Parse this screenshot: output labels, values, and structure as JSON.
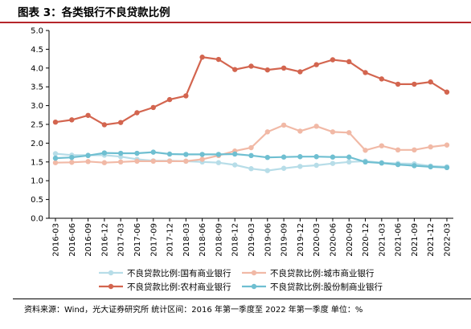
{
  "figure_title": "图表 3：各类银行不良贷款比例",
  "source_note": "资料来源：Wind，光大证券研究所    统计区间：2016 年第一季度至 2022 年第一季度    单位：%",
  "chart_data": {
    "type": "line",
    "title": "",
    "xlabel": "",
    "ylabel": "",
    "ylim": [
      0,
      5
    ],
    "yticks": [
      "0.0",
      "0.5",
      "1.0",
      "1.5",
      "2.0",
      "2.5",
      "3.0",
      "3.5",
      "4.0",
      "4.5",
      "5.0"
    ],
    "grid": false,
    "legend_position": "bottom",
    "categories": [
      "2016-03",
      "2016-06",
      "2016-09",
      "2016-12",
      "2017-03",
      "2017-06",
      "2017-09",
      "2017-12",
      "2018-03",
      "2018-06",
      "2018-09",
      "2018-12",
      "2019-03",
      "2019-06",
      "2019-09",
      "2019-12",
      "2020-03",
      "2020-06",
      "2020-09",
      "2020-12",
      "2021-03",
      "2021-06",
      "2021-09",
      "2021-12",
      "2022-03"
    ],
    "series": [
      {
        "name": "不良贷款比例:国有商业银行",
        "color": "#b7dde8",
        "values": [
          1.72,
          1.68,
          1.68,
          1.68,
          1.64,
          1.57,
          1.53,
          1.53,
          1.52,
          1.5,
          1.48,
          1.42,
          1.32,
          1.27,
          1.33,
          1.38,
          1.41,
          1.46,
          1.5,
          1.52,
          1.48,
          1.46,
          1.45,
          1.39,
          1.37
        ]
      },
      {
        "name": "不良贷款比例:城市商业银行",
        "color": "#f1b9a6",
        "values": [
          1.48,
          1.49,
          1.51,
          1.48,
          1.5,
          1.52,
          1.52,
          1.52,
          1.52,
          1.57,
          1.67,
          1.79,
          1.88,
          2.3,
          2.48,
          2.32,
          2.45,
          2.3,
          2.28,
          1.81,
          1.93,
          1.82,
          1.82,
          1.9,
          1.95
        ]
      },
      {
        "name": "不良贷款比例:农村商业银行",
        "color": "#d3654f",
        "values": [
          2.56,
          2.62,
          2.74,
          2.49,
          2.55,
          2.81,
          2.95,
          3.16,
          3.26,
          4.29,
          4.23,
          3.96,
          4.05,
          3.95,
          4.0,
          3.9,
          4.09,
          4.22,
          4.17,
          3.88,
          3.71,
          3.57,
          3.57,
          3.63,
          3.36
        ]
      },
      {
        "name": "不良贷款比例:股份制商业银行",
        "color": "#6fbfd1",
        "values": [
          1.6,
          1.62,
          1.67,
          1.74,
          1.73,
          1.73,
          1.76,
          1.71,
          1.7,
          1.7,
          1.7,
          1.71,
          1.67,
          1.62,
          1.63,
          1.64,
          1.64,
          1.63,
          1.63,
          1.5,
          1.47,
          1.43,
          1.4,
          1.37,
          1.35
        ]
      }
    ]
  }
}
